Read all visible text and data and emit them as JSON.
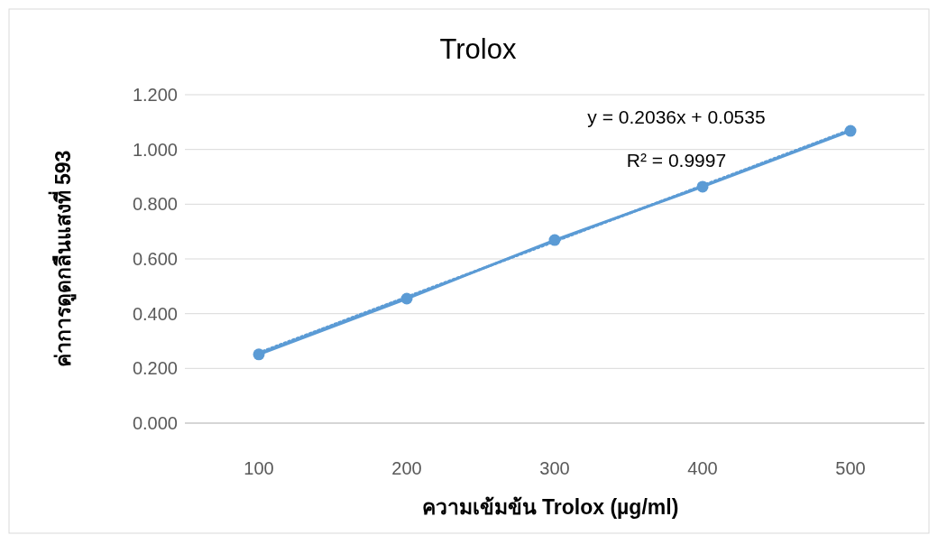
{
  "chart_data": {
    "type": "line",
    "title": "Trolox",
    "xlabel": "ความเข้มข้น Trolox (µg/ml)",
    "ylabel": "ค่าการดูดกลืนแสงที่ 593",
    "categories": [
      "100",
      "200",
      "300",
      "400",
      "500"
    ],
    "series": [
      {
        "color": "#5b9bd5",
        "values": [
          0.251,
          0.455,
          0.669,
          0.864,
          1.068
        ],
        "marker": "circle",
        "line_style": "solid"
      },
      {
        "type": "line",
        "color": "#5b9bd5",
        "values": [
          0.257,
          0.461,
          0.664,
          0.868,
          1.072
        ],
        "marker": "none",
        "line_style": "dotted"
      }
    ],
    "ylim": [
      0,
      1.2
    ],
    "yticks": [
      {
        "value": 0,
        "label": "0.000"
      },
      {
        "value": 0.2,
        "label": "0.200"
      },
      {
        "value": 0.4,
        "label": "0.400"
      },
      {
        "value": 0.6,
        "label": "0.600"
      },
      {
        "value": 0.8,
        "label": "0.800"
      },
      {
        "value": 1.0,
        "label": "1.000"
      },
      {
        "value": 1.2,
        "label": "1.200"
      }
    ],
    "grid": "y",
    "annotations": [
      "y = 0.2036x + 0.0535",
      "R² = 0.9997"
    ]
  }
}
